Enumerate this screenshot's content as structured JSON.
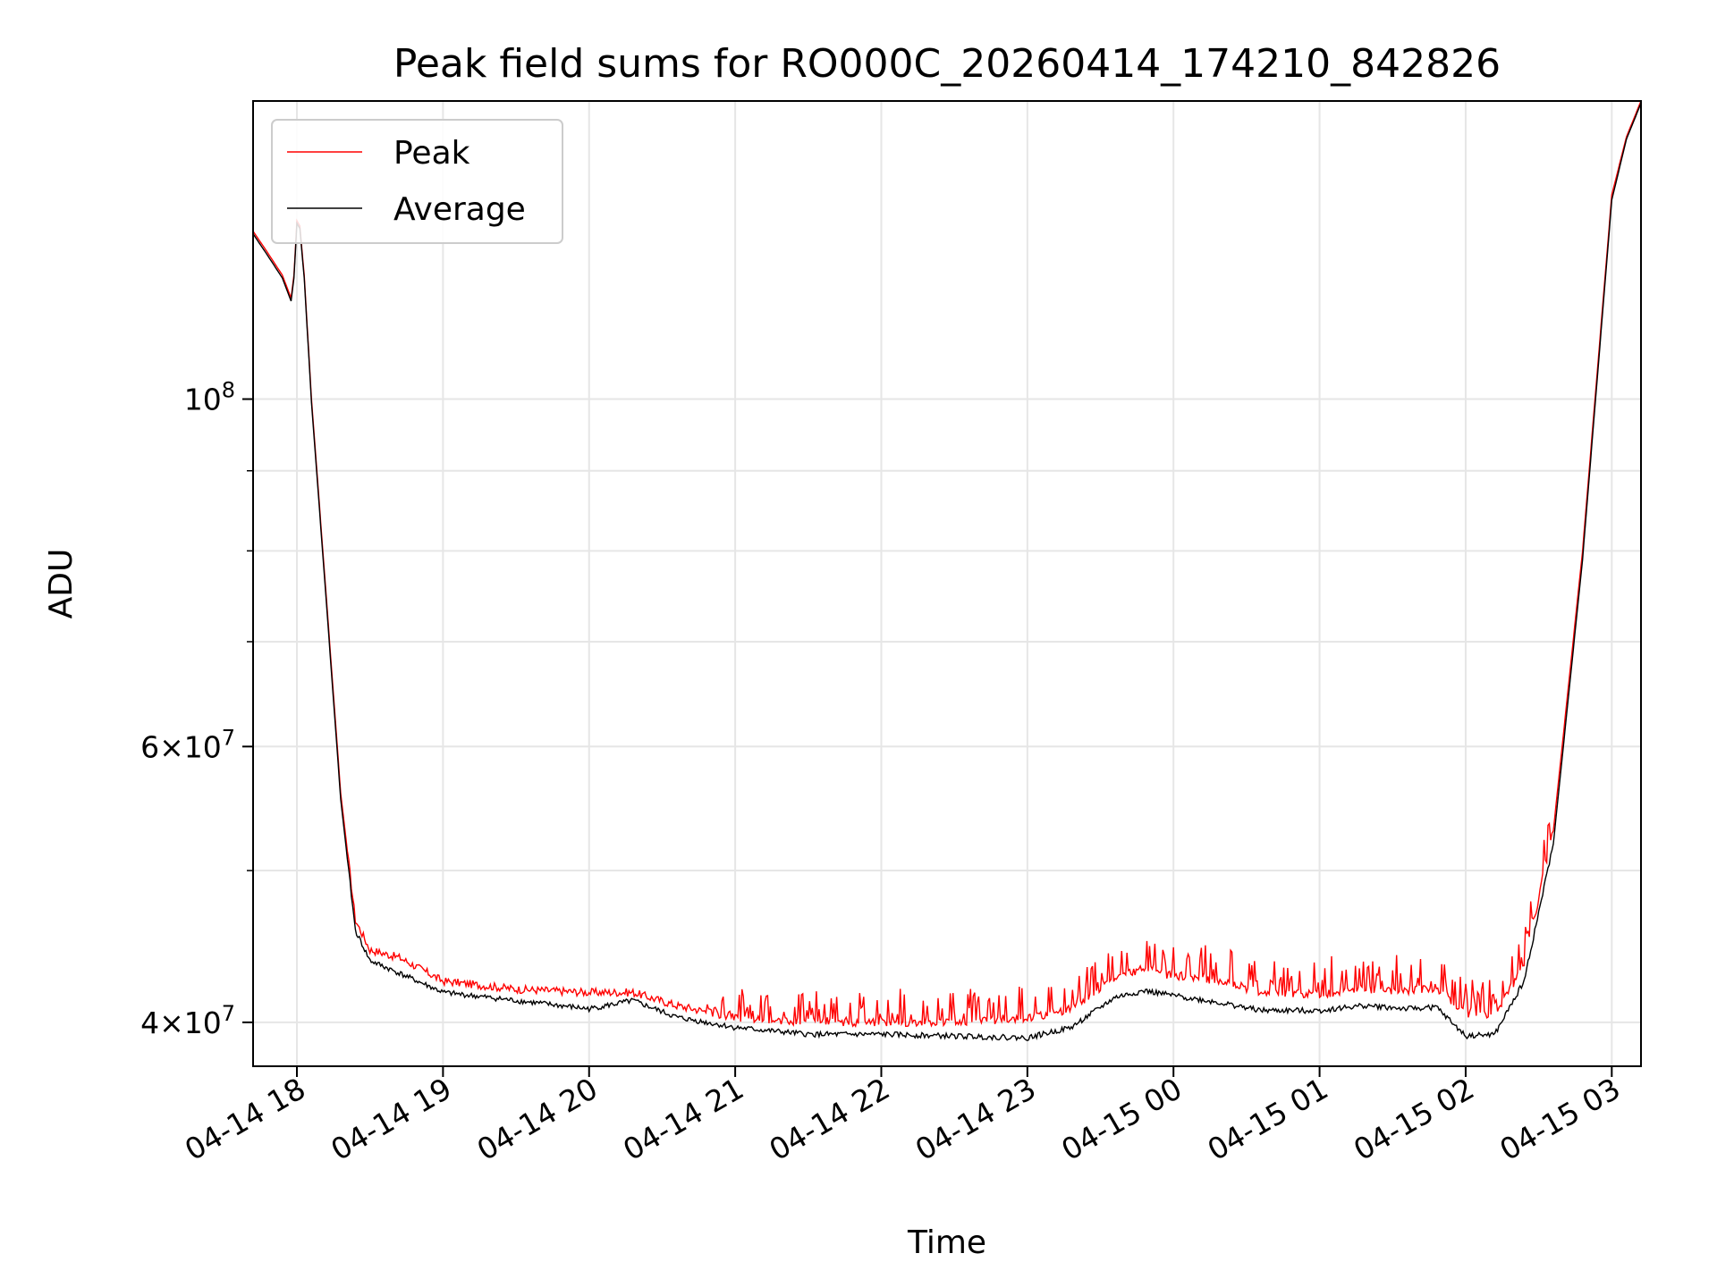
{
  "chart_data": {
    "type": "line",
    "title": "Peak field sums for RO000C_20260414_174210_842826",
    "xlabel": "Time",
    "ylabel": "ADU",
    "yscale": "log",
    "grid": true,
    "legend_position": "top-left",
    "x_unit": "hours since 04-14 18:00",
    "xlim": [
      -0.3,
      9.2
    ],
    "ylim": [
      37500000,
      155000000
    ],
    "x_ticks": [
      {
        "value": 0,
        "label": "04-14 18"
      },
      {
        "value": 1,
        "label": "04-14 19"
      },
      {
        "value": 2,
        "label": "04-14 20"
      },
      {
        "value": 3,
        "label": "04-14 21"
      },
      {
        "value": 4,
        "label": "04-14 22"
      },
      {
        "value": 5,
        "label": "04-14 23"
      },
      {
        "value": 6,
        "label": "04-15 00"
      },
      {
        "value": 7,
        "label": "04-15 01"
      },
      {
        "value": 8,
        "label": "04-15 02"
      },
      {
        "value": 9,
        "label": "04-15 03"
      }
    ],
    "y_ticks": [
      {
        "value": 40000000,
        "base": "4×10",
        "exp": "7"
      },
      {
        "value": 60000000,
        "base": "6×10",
        "exp": "7"
      },
      {
        "value": 100000000,
        "base": "10",
        "exp": "8"
      }
    ],
    "y_minor_ticks": [
      50000000,
      70000000,
      80000000,
      90000000
    ],
    "series": [
      {
        "name": "Peak",
        "color": "#ff0000",
        "x": [
          -0.3,
          -0.2,
          -0.1,
          -0.04,
          -0.02,
          0.0,
          0.02,
          0.05,
          0.1,
          0.2,
          0.3,
          0.4,
          0.5,
          0.7,
          0.9,
          1.0,
          1.5,
          2.0,
          2.3,
          2.6,
          3.0,
          3.5,
          4.0,
          4.5,
          5.0,
          5.3,
          5.6,
          5.8,
          6.0,
          6.3,
          6.6,
          7.0,
          7.3,
          7.6,
          7.8,
          8.0,
          8.2,
          8.4,
          8.6,
          8.8,
          9.0,
          9.1,
          9.2
        ],
        "values": [
          128000000,
          124000000,
          120000000,
          116000000,
          120000000,
          130000000,
          129000000,
          120000000,
          100000000,
          75000000,
          56000000,
          46500000,
          44500000,
          44000000,
          43000000,
          42500000,
          42000000,
          41800000,
          41800000,
          41000000,
          40300000,
          40000000,
          40000000,
          40000000,
          40200000,
          40800000,
          42700000,
          43300000,
          42800000,
          42500000,
          41800000,
          41700000,
          42000000,
          41900000,
          42100000,
          40500000,
          40500000,
          43500000,
          53000000,
          80000000,
          135000000,
          147000000,
          155000000
        ]
      },
      {
        "name": "Average",
        "color": "#000000",
        "x": [
          -0.3,
          -0.2,
          -0.1,
          -0.04,
          -0.02,
          0.0,
          0.02,
          0.05,
          0.1,
          0.2,
          0.3,
          0.4,
          0.5,
          0.7,
          0.9,
          1.0,
          1.5,
          2.0,
          2.3,
          2.6,
          3.0,
          3.5,
          4.0,
          4.5,
          5.0,
          5.3,
          5.6,
          5.8,
          6.0,
          6.3,
          6.6,
          7.0,
          7.3,
          7.6,
          7.8,
          8.0,
          8.2,
          8.4,
          8.6,
          8.8,
          9.0,
          9.1,
          9.2
        ],
        "values": [
          127500000,
          123500000,
          119500000,
          115500000,
          119500000,
          129500000,
          128500000,
          119500000,
          99500000,
          74500000,
          55500000,
          45800000,
          43800000,
          43000000,
          42200000,
          41800000,
          41300000,
          40800000,
          41300000,
          40300000,
          39700000,
          39300000,
          39300000,
          39200000,
          39100000,
          39700000,
          41500000,
          41900000,
          41600000,
          41200000,
          40700000,
          40700000,
          41000000,
          40800000,
          40900000,
          39200000,
          39300000,
          42500000,
          52000000,
          79000000,
          134000000,
          146500000,
          154500000
        ]
      }
    ]
  }
}
